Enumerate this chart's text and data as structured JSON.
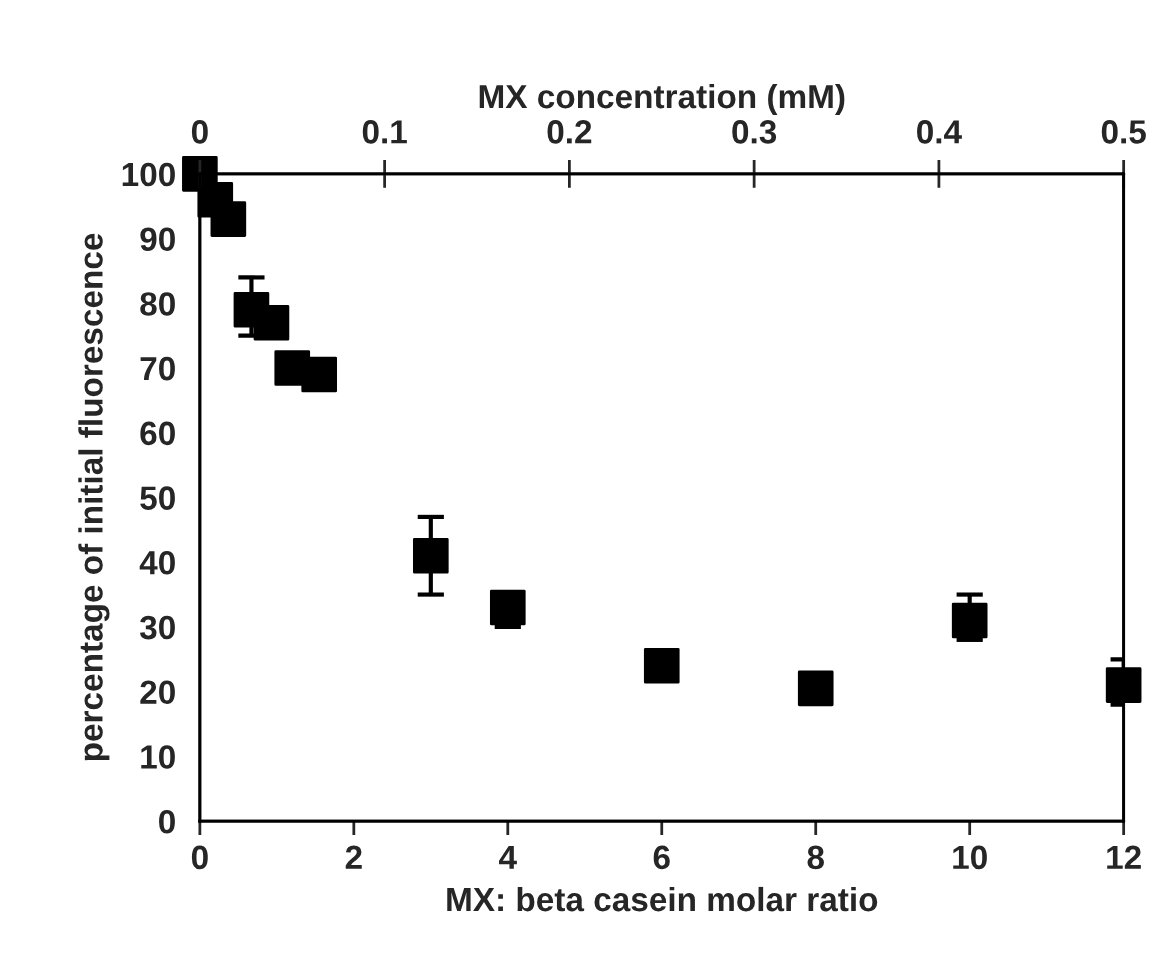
{
  "chart_data": {
    "type": "scatter",
    "xlabel": "MX: beta casein molar ratio",
    "ylabel": "percentage of initial fluorescence",
    "x2label": "MX concentration (mM)",
    "x": [
      0,
      0.2,
      0.37,
      0.67,
      0.93,
      1.2,
      1.55,
      3,
      4,
      6,
      8,
      10,
      12
    ],
    "series": [
      {
        "color": "#000000",
        "values": [
          100,
          96,
          93,
          79,
          77,
          70,
          69,
          41,
          33,
          24,
          20.5,
          31,
          21
        ],
        "errors": [
          null,
          null,
          null,
          [
            75,
            84
          ],
          null,
          null,
          null,
          [
            35,
            47
          ],
          [
            30,
            33
          ],
          null,
          null,
          [
            28,
            35
          ],
          [
            18,
            25
          ]
        ]
      }
    ],
    "xlim": [
      0,
      12
    ],
    "xticks": [
      0,
      2,
      4,
      6,
      8,
      10,
      12
    ],
    "x2lim": [
      0,
      0.5
    ],
    "x2ticks": [
      0,
      0.1,
      0.2,
      0.3,
      0.4,
      0.5
    ],
    "ylim": [
      0,
      100
    ],
    "yticks": [
      0,
      10,
      20,
      30,
      40,
      50,
      60,
      70,
      80,
      90,
      100
    ],
    "marker": "square",
    "grid": false,
    "legend": false
  }
}
